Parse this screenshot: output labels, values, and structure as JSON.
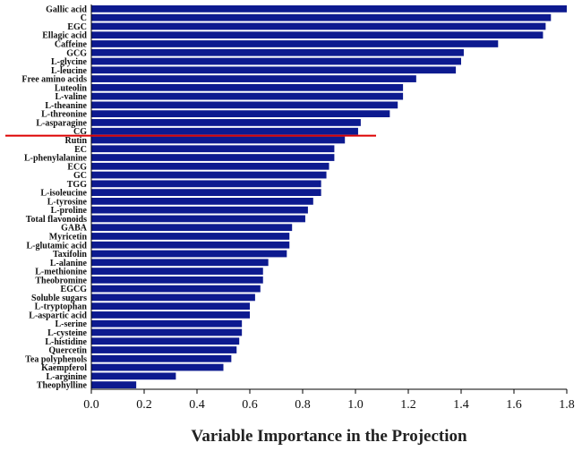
{
  "chart_data": {
    "type": "bar",
    "orientation": "horizontal",
    "xlabel": "Variable Importance in the Projection",
    "xlim": [
      0,
      1.8
    ],
    "xticks": [
      "0.0",
      "0.2",
      "0.4",
      "0.6",
      "0.8",
      "1.0",
      "1.2",
      "1.4",
      "1.6",
      "1.8"
    ],
    "bar_color": "#0d1a8f",
    "threshold_line_color": "#dd0000",
    "threshold_after_category": "CG",
    "categories": [
      "Gallic acid",
      "C",
      "EGC",
      "Ellagic acid",
      "Caffeine",
      "GCG",
      "L-glycine",
      "L-leucine",
      "Free amino acids",
      "Luteolin",
      "L-valine",
      "L-theanine",
      "L-threonine",
      "L-asparagine",
      "CG",
      "Rutin",
      "EC",
      "L-phenylalanine",
      "ECG",
      "GC",
      "TGG",
      "L-isoleucine",
      "L-tyrosine",
      "L-proline",
      "Total flavonoids",
      "GABA",
      "Myricetin",
      "L-glutamic acid",
      "Taxifolin",
      "L-alanine",
      "L-methionine",
      "Theobromine",
      "EGCG",
      "Soluble sugars",
      "L-tryptophan",
      "L-aspartic acid",
      "L-serine",
      "L-cysteine",
      "L-histidine",
      "Quercetin",
      "Tea polyphenols",
      "Kaempferol",
      "L-arginine",
      "Theophylline"
    ],
    "values": [
      1.8,
      1.74,
      1.72,
      1.71,
      1.54,
      1.41,
      1.4,
      1.38,
      1.23,
      1.18,
      1.18,
      1.16,
      1.13,
      1.02,
      1.01,
      0.96,
      0.92,
      0.92,
      0.9,
      0.89,
      0.87,
      0.87,
      0.84,
      0.82,
      0.81,
      0.76,
      0.75,
      0.75,
      0.74,
      0.67,
      0.65,
      0.65,
      0.64,
      0.62,
      0.6,
      0.6,
      0.57,
      0.57,
      0.56,
      0.55,
      0.53,
      0.5,
      0.32,
      0.17
    ]
  }
}
